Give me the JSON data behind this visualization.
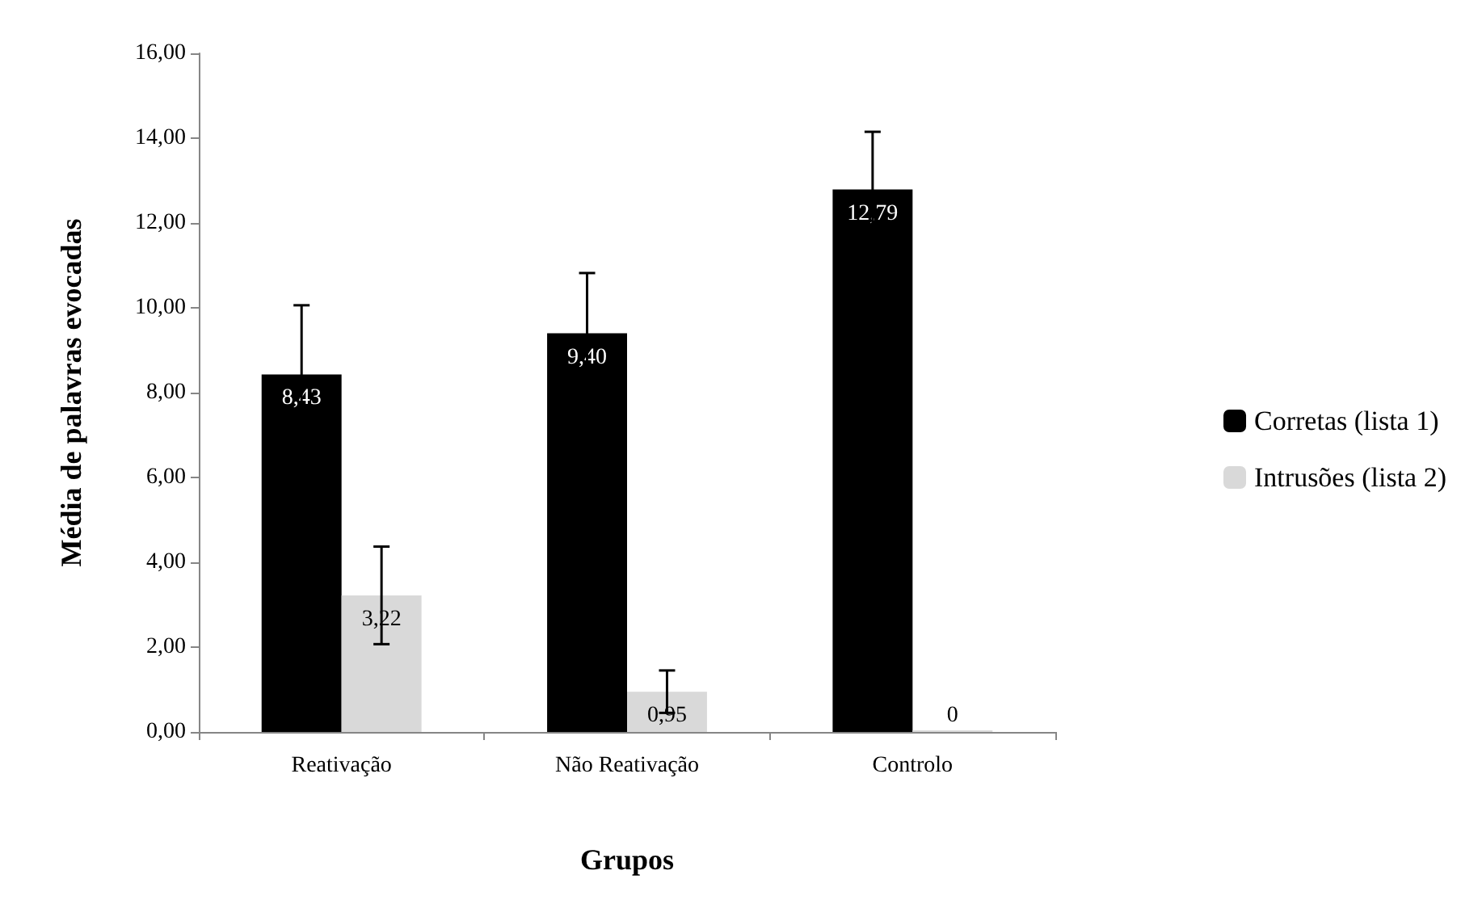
{
  "chart_data": {
    "type": "bar",
    "xlabel": "Grupos",
    "ylabel": "Média de palavras evocadas",
    "categories": [
      "Reativação",
      "Não Reativação",
      "Controlo"
    ],
    "series": [
      {
        "name": "Corretas (lista 1)",
        "color": "#000000",
        "values": [
          8.43,
          9.4,
          12.79
        ],
        "errors": [
          1.63,
          1.42,
          1.36
        ],
        "value_labels": [
          "8,43",
          "9,40",
          "12,79"
        ]
      },
      {
        "name": "Intrusões (lista 2)",
        "color": "#d9d9d9",
        "values": [
          3.22,
          0.95,
          0
        ],
        "errors": [
          1.15,
          0.5,
          null
        ],
        "value_labels": [
          "3,22",
          "0,95",
          "0"
        ]
      }
    ],
    "ylim": [
      0,
      16
    ],
    "yticks": [
      {
        "value": 0,
        "label": "0,00"
      },
      {
        "value": 2,
        "label": "2,00"
      },
      {
        "value": 4,
        "label": "4,00"
      },
      {
        "value": 6,
        "label": "6,00"
      },
      {
        "value": 8,
        "label": "8,00"
      },
      {
        "value": 10,
        "label": "10,00"
      },
      {
        "value": 12,
        "label": "12,00"
      },
      {
        "value": 14,
        "label": "14,00"
      },
      {
        "value": 16,
        "label": "16,00"
      }
    ],
    "grid": false,
    "legend": "right"
  }
}
